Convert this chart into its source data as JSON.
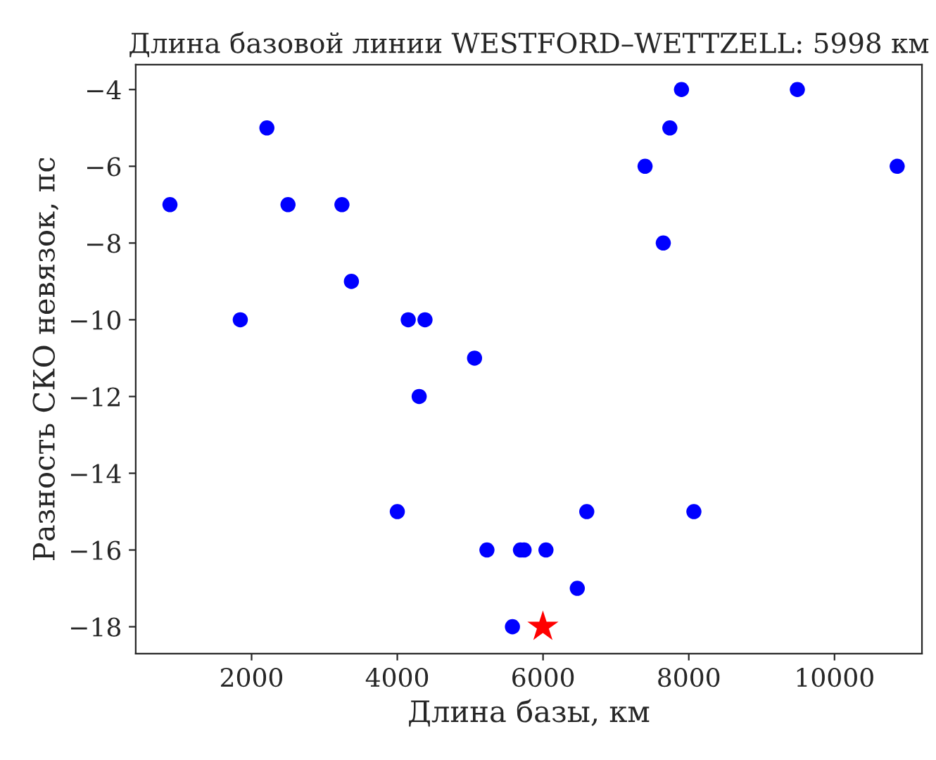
{
  "chart_data": {
    "type": "scatter",
    "title": "Длина базовой линии WESTFORD–WETTZELL: 5998 км",
    "xlabel": "Длина базы, км",
    "ylabel": "Разность СКО невязок, пс",
    "xlim": [
      410,
      11200
    ],
    "ylim": [
      -18.7,
      -3.35
    ],
    "xticks": [
      2000,
      4000,
      6000,
      8000,
      10000
    ],
    "yticks": [
      -18,
      -16,
      -14,
      -12,
      -10,
      -8,
      -6,
      -4
    ],
    "grid": false,
    "series": [
      {
        "color": "#0000ff",
        "marker": "circle",
        "x": [
          880,
          1845,
          2210,
          2500,
          3240,
          3370,
          4000,
          4150,
          4380,
          4300,
          5060,
          5230,
          5580,
          5690,
          5740,
          6040,
          6470,
          6600,
          7400,
          7650,
          7740,
          7900,
          8070,
          9490,
          10860
        ],
        "values": [
          -7,
          -10,
          -5,
          -7,
          -7,
          -9,
          -15,
          -10,
          -10,
          -12,
          -11,
          -16,
          -18,
          -16,
          -16,
          -16,
          -17,
          -15,
          -6,
          -8,
          -5,
          -4,
          -15,
          -4,
          -6
        ]
      },
      {
        "color": "#ff0000",
        "marker": "star",
        "x": [
          5998
        ],
        "values": [
          -18
        ]
      }
    ]
  }
}
